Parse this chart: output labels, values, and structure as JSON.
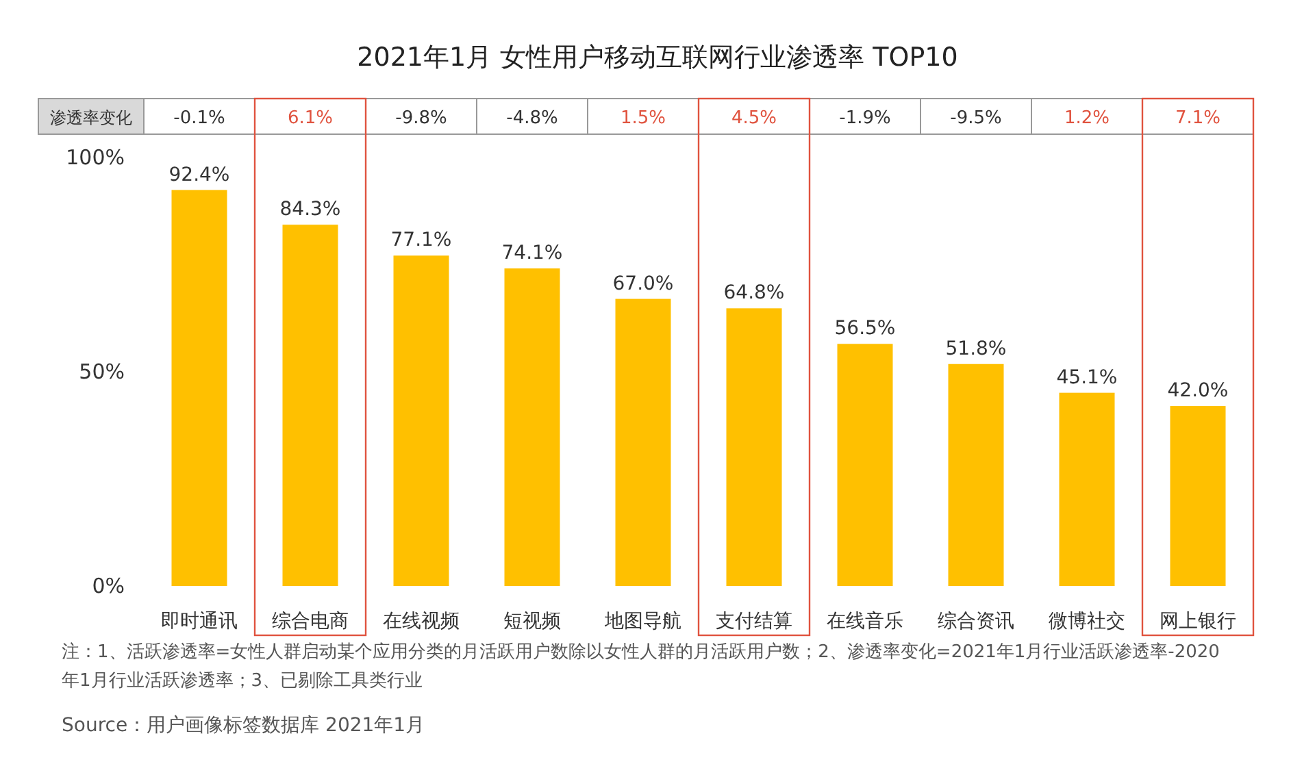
{
  "chart_data": {
    "type": "bar",
    "title": "2021年1月 女性用户移动互联网行业渗透率 TOP10",
    "categories": [
      "即时通讯",
      "综合电商",
      "在线视频",
      "短视频",
      "地图导航",
      "支付结算",
      "在线音乐",
      "综合资讯",
      "微博社交",
      "网上银行"
    ],
    "values": [
      92.4,
      84.3,
      77.1,
      74.1,
      67.0,
      64.8,
      56.5,
      51.8,
      45.1,
      42.0
    ],
    "value_labels": [
      "92.4%",
      "84.3%",
      "77.1%",
      "74.1%",
      "67.0%",
      "64.8%",
      "56.5%",
      "51.8%",
      "45.1%",
      "42.0%"
    ],
    "color": "#ffc000",
    "ylim": [
      0,
      100
    ],
    "yticks": [
      {
        "value": 0,
        "label": "0%"
      },
      {
        "value": 50,
        "label": "50%"
      },
      {
        "value": 100,
        "label": "100%"
      }
    ],
    "grid": false,
    "annotations": [
      "渗透率变化",
      "-0.1%",
      "6.1%",
      "-9.8%",
      "-4.8%",
      "1.5%",
      "4.5%",
      "-1.9%",
      "-9.5%",
      "1.2%",
      "7.1%",
      "注：1、活跃渗透率=女性人群启动某个应用分类的月活跃用户数除以女性人群的月活跃用户数；2、渗透率变化=2021年1月行业活跃渗透率-2020年1月行业活跃渗透率；3、已剔除工具类行业",
      "Source：用户画像标签数据库 2021年1月"
    ]
  }
}
